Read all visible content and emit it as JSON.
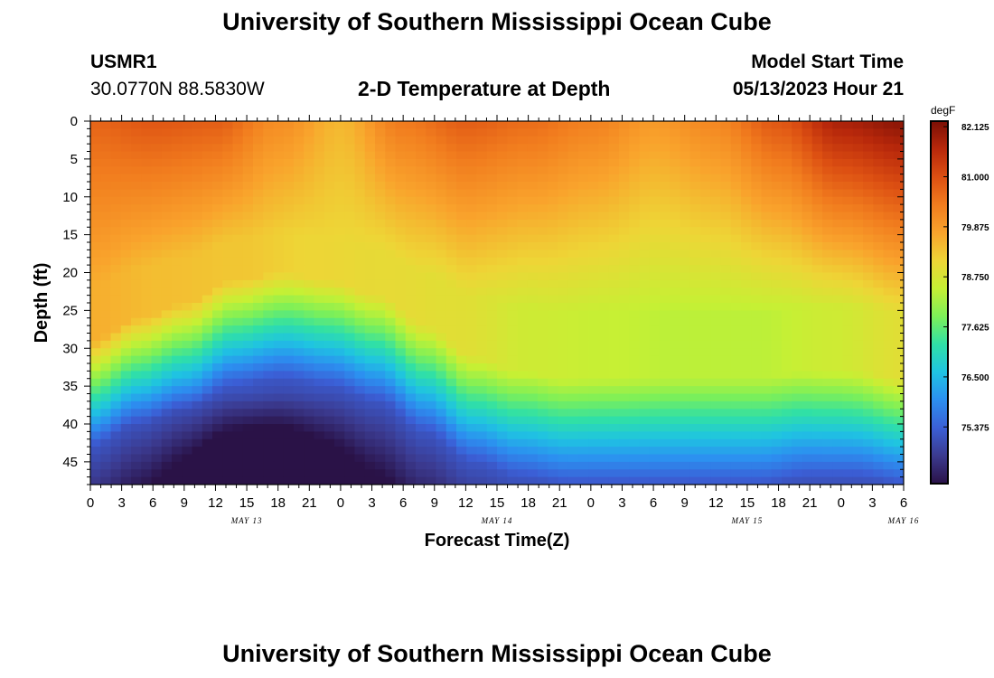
{
  "header": {
    "title": "University of Southern Mississippi Ocean Cube",
    "station_id": "USMR1",
    "coordinates": "30.0770N  88.5830W",
    "subtitle": "2-D Temperature at Depth",
    "model_start_label": "Model Start Time",
    "model_start_value": "05/13/2023 Hour 21"
  },
  "footer": {
    "title": "University of Southern Mississippi Ocean Cube"
  },
  "chart_data": {
    "type": "heatmap",
    "title": "2-D Temperature at Depth",
    "xlabel": "Forecast Time(Z)",
    "ylabel": "Depth (ft)",
    "x_tick_labels": [
      "0",
      "3",
      "6",
      "9",
      "12",
      "15",
      "18",
      "21",
      "0",
      "3",
      "6",
      "9",
      "12",
      "15",
      "18",
      "21",
      "0",
      "3",
      "6",
      "9",
      "12",
      "15",
      "18",
      "21",
      "0",
      "3",
      "6"
    ],
    "date_labels": [
      {
        "text": "MAY 13",
        "hour_index": 15
      },
      {
        "text": "MAY 14",
        "hour_index": 39
      },
      {
        "text": "MAY 15",
        "hour_index": 63
      },
      {
        "text": "MAY 16",
        "hour_index": 78
      }
    ],
    "x_range_hours": [
      0,
      78
    ],
    "y_ticks": [
      "0",
      "5",
      "10",
      "15",
      "20",
      "25",
      "30",
      "35",
      "40",
      "45"
    ],
    "ylim": [
      0,
      48
    ],
    "colorbar": {
      "unit": "degF",
      "range": [
        74.1,
        82.25
      ],
      "tick_values": [
        "82.125",
        "81.000",
        "79.875",
        "78.750",
        "77.625",
        "76.500",
        "75.375"
      ],
      "colors": [
        "#2a1247",
        "#3b3a8f",
        "#3b5fd6",
        "#2c8ff0",
        "#1fc3e2",
        "#30e0a6",
        "#7df058",
        "#c6f034",
        "#eed536",
        "#f9a32c",
        "#f17c1e",
        "#dc4f12",
        "#b8280b",
        "#7b0f05"
      ]
    },
    "thermocline_depth_ft": [
      29,
      26,
      24,
      21,
      20,
      21,
      23,
      27,
      31,
      33,
      34,
      34,
      34,
      34,
      34,
      33,
      33,
      34
    ],
    "surface_temperature_degF": [
      80.7,
      80.9,
      80.8,
      80.1,
      79.5,
      80.4,
      80.8,
      80.6,
      80.3,
      79.9,
      80.2,
      80.9,
      81.8,
      82.1
    ],
    "mid_layer_temperature_degF": [
      79.6,
      79.4,
      79.3,
      79.1,
      79.0,
      78.9,
      78.6,
      78.5,
      78.4,
      78.4,
      78.6,
      78.9
    ]
  }
}
